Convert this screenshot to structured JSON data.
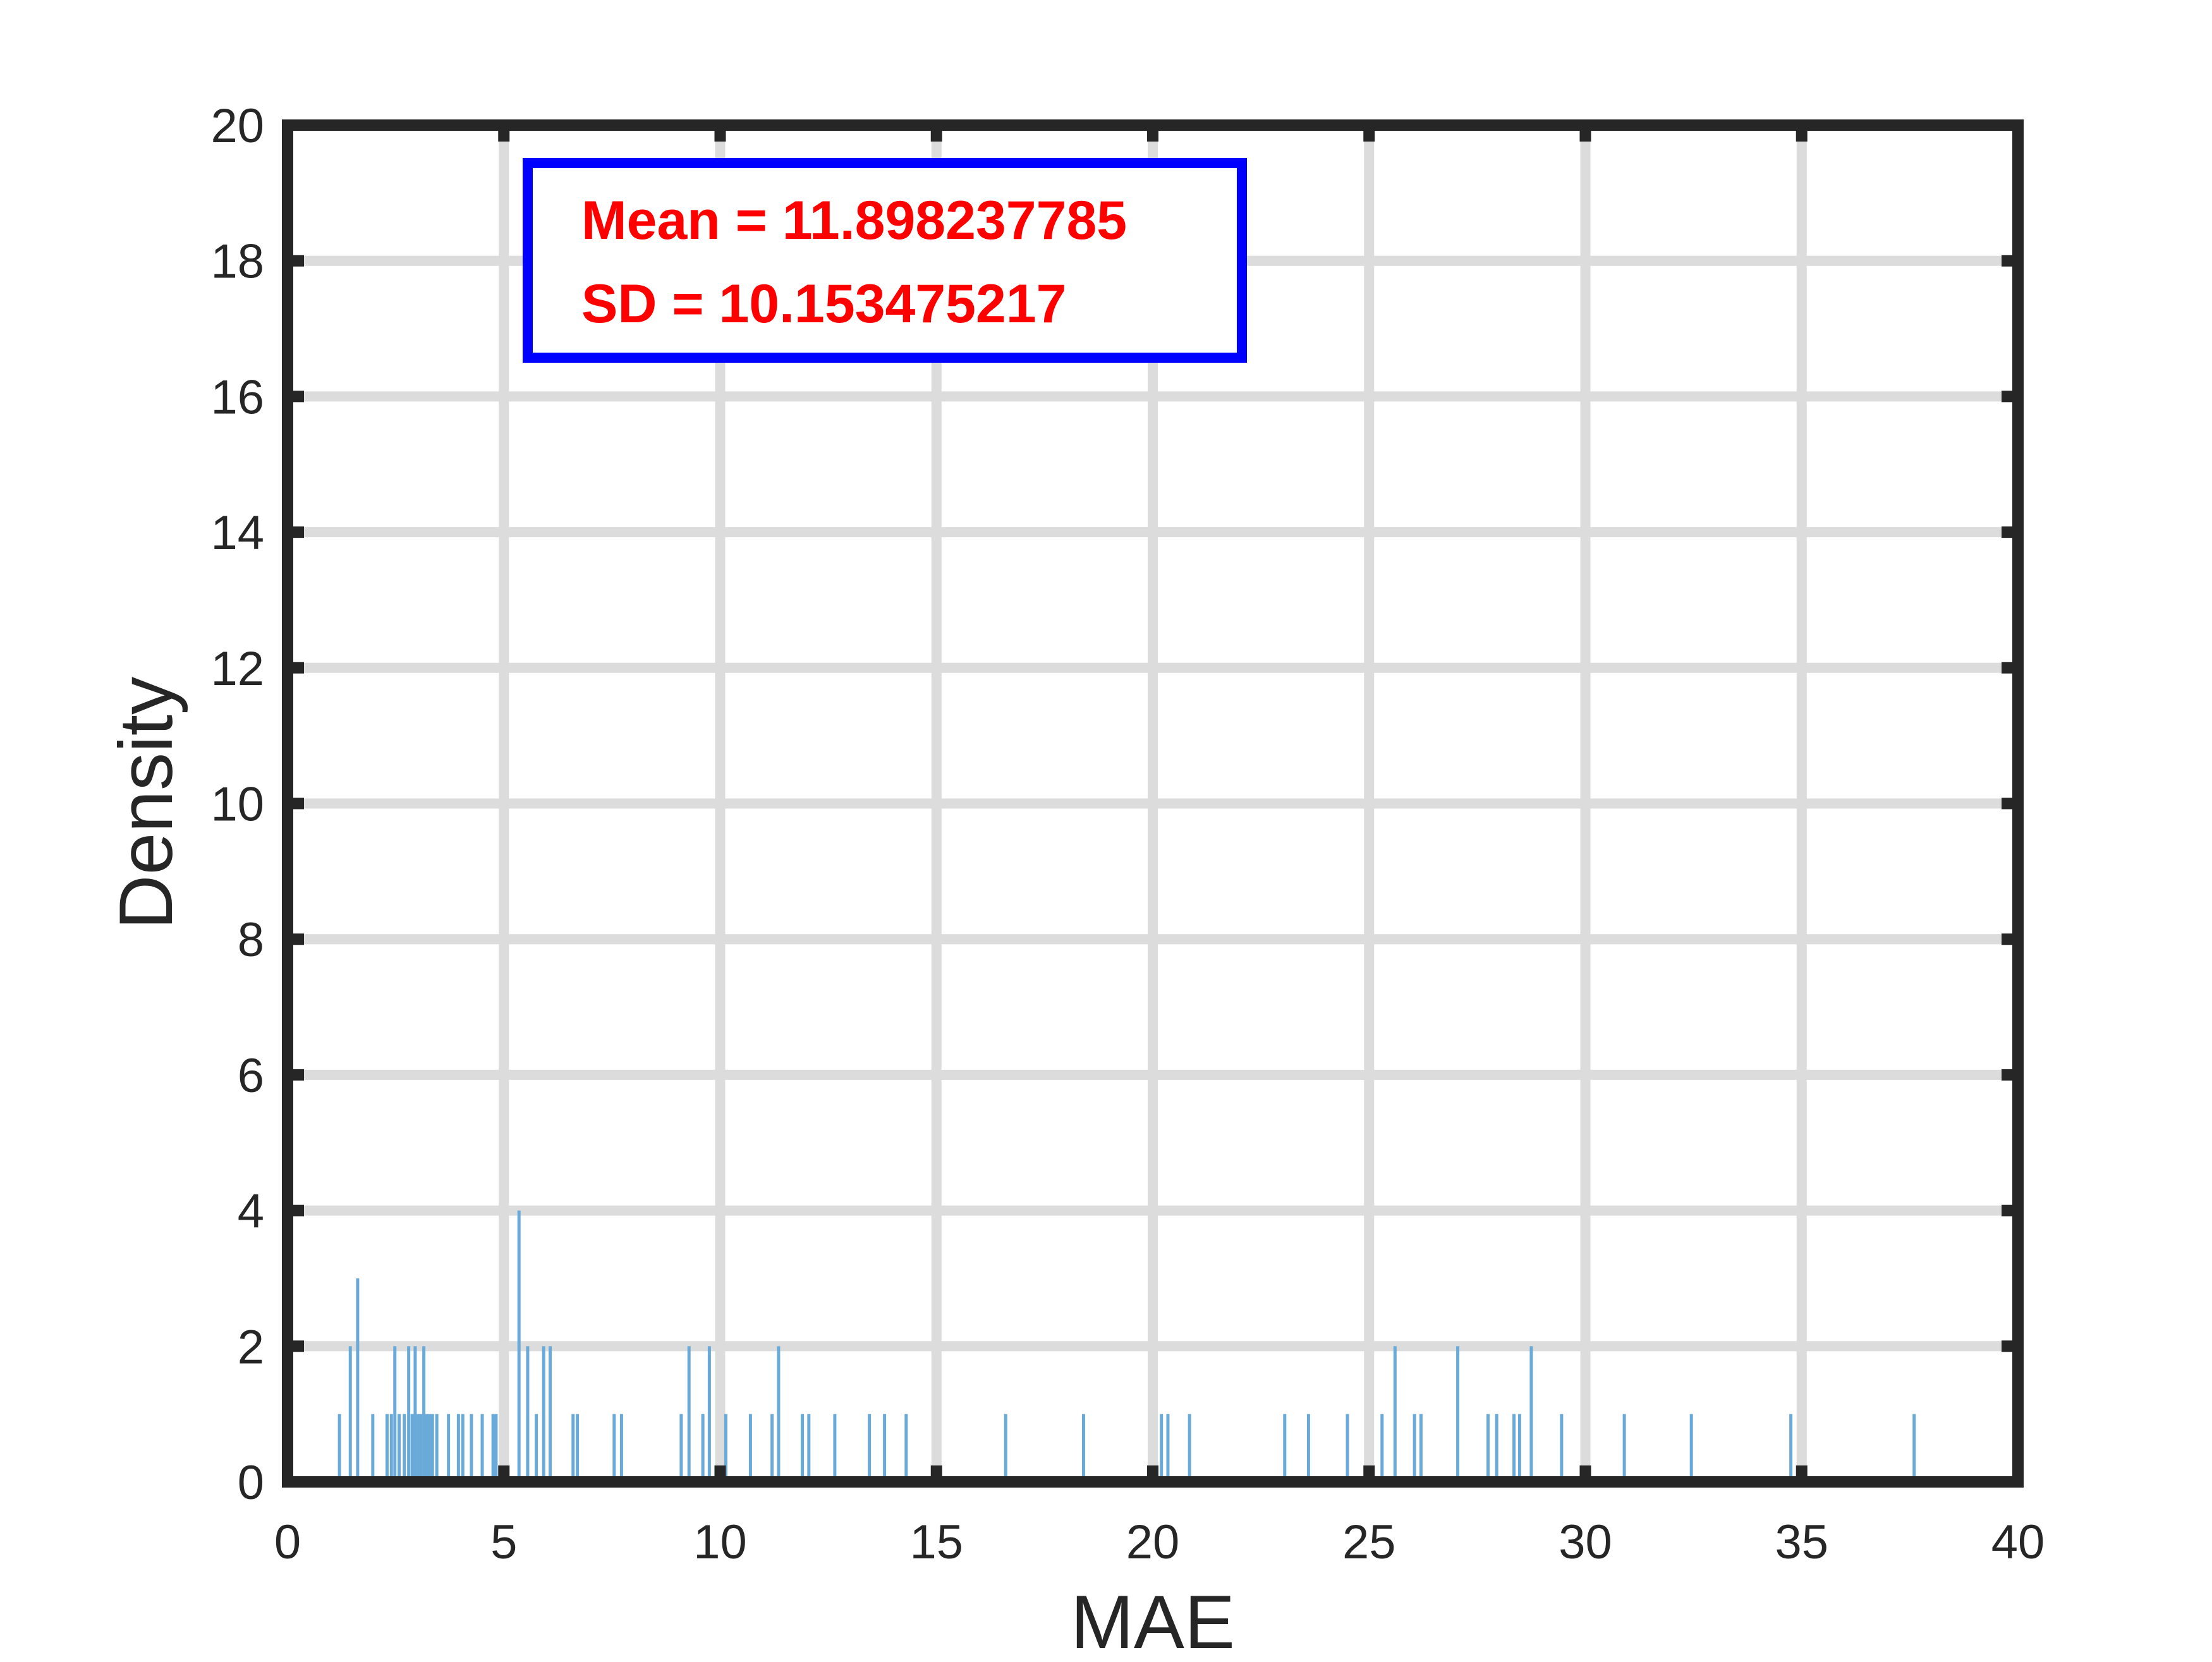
{
  "chart_data": {
    "type": "bar",
    "subtype": "histogram",
    "xlabel": "MAE",
    "ylabel": "Density",
    "xlim": [
      0,
      40
    ],
    "ylim": [
      0,
      20
    ],
    "xticks": [
      "0",
      "5",
      "10",
      "15",
      "20",
      "25",
      "30",
      "35",
      "40"
    ],
    "yticks": [
      "0",
      "2",
      "4",
      "6",
      "8",
      "10",
      "12",
      "14",
      "16",
      "18",
      "20"
    ],
    "grid": true,
    "bar_color": "#6aaad8",
    "annotation": {
      "lines": [
        "Mean = 11.898237785",
        "SD = 10.153475217"
      ],
      "text_color": "#ff0000",
      "border_color": "#0000ff"
    },
    "series": [
      {
        "x": [
          1.2,
          1.45,
          1.62,
          1.97,
          2.3,
          2.4,
          2.48,
          2.58,
          2.7,
          2.8,
          2.88,
          2.95,
          3.02,
          3.08,
          3.15,
          3.22,
          3.28,
          3.35,
          3.45,
          3.72,
          3.95,
          4.05,
          4.25,
          4.5,
          4.75,
          4.82,
          5.35,
          5.55,
          5.75,
          5.92,
          6.07,
          6.6,
          6.7,
          7.55,
          7.72,
          9.1,
          9.28,
          9.6,
          9.75,
          10.13,
          10.7,
          11.2,
          11.35,
          11.9,
          12.05,
          12.65,
          13.45,
          13.8,
          14.3,
          16.6,
          18.4,
          20.2,
          20.35,
          20.85,
          23.05,
          23.6,
          24.5,
          25.3,
          25.6,
          26.05,
          26.2,
          27.05,
          27.75,
          27.95,
          28.35,
          28.48,
          28.75,
          29.45,
          30.9,
          32.45,
          34.75,
          37.6
        ],
        "values": [
          1,
          2,
          3,
          1,
          1,
          1,
          2,
          1,
          1,
          2,
          1,
          2,
          1,
          1,
          2,
          1,
          1,
          1,
          1,
          1,
          1,
          1,
          1,
          1,
          1,
          1,
          4,
          2,
          1,
          2,
          2,
          1,
          1,
          1,
          1,
          1,
          2,
          1,
          2,
          1,
          1,
          1,
          2,
          1,
          1,
          1,
          1,
          1,
          1,
          1,
          1,
          1,
          1,
          1,
          1,
          1,
          1,
          1,
          2,
          1,
          1,
          2,
          1,
          1,
          1,
          1,
          2,
          1,
          1,
          1,
          1,
          1
        ]
      }
    ]
  }
}
